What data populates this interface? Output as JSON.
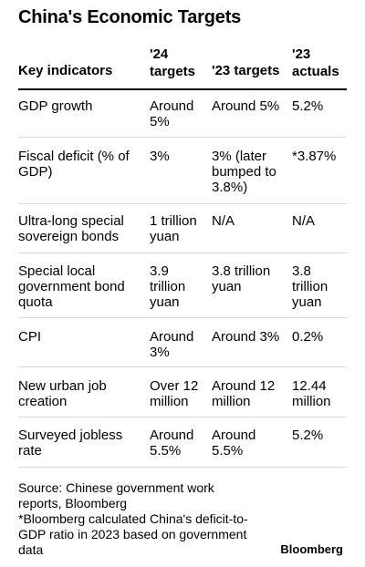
{
  "title": "China's Economic Targets",
  "table": {
    "headers": [
      "Key indicators",
      "'24 targets",
      "'23 targets",
      "'23 actuals"
    ],
    "rows": [
      [
        "GDP growth",
        "Around 5%",
        "Around 5%",
        "5.2%"
      ],
      [
        "Fiscal deficit (% of GDP)",
        "3%",
        "3% (later bumped to 3.8%)",
        "*3.87%"
      ],
      [
        "Ultra-long special sovereign bonds",
        "1 trillion yuan",
        "N/A",
        "N/A"
      ],
      [
        "Special local government bond quota",
        "3.9 trillion yuan",
        "3.8 trillion yuan",
        "3.8 trillion yuan"
      ],
      [
        "CPI",
        "Around 3%",
        "Around 3%",
        "0.2%"
      ],
      [
        "New urban job creation",
        "Over 12 million",
        "Around 12 million",
        "12.44 million"
      ],
      [
        "Surveyed jobless rate",
        "Around 5.5%",
        "Around 5.5%",
        "5.2%"
      ]
    ]
  },
  "footer": {
    "source": "Source: Chinese government work reports, Bloomberg",
    "note": "*Bloomberg calculated China's deficit-to-GDP ratio in 2023 based on government data"
  },
  "brand": "Bloomberg"
}
